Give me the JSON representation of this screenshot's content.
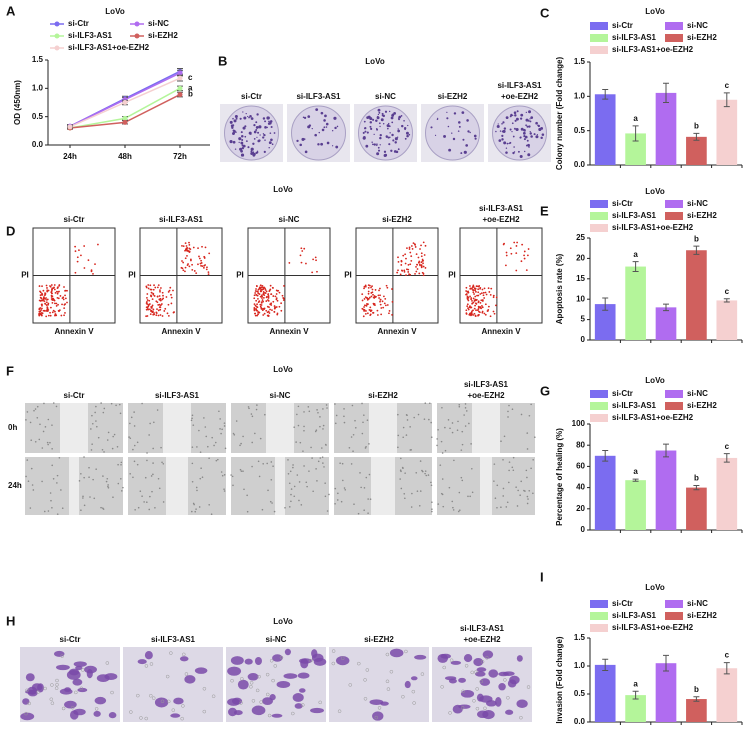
{
  "chart_data": [
    {
      "type": "line",
      "panel": "A",
      "title": "LoVo",
      "y_label": "OD (450nm)",
      "categories": [
        "24h",
        "48h",
        "72h"
      ],
      "ylim": [
        0,
        1.5
      ],
      "yticks": [
        {
          "value": 0,
          "label": "0.0"
        },
        {
          "value": 0.5,
          "label": "0.5"
        },
        {
          "value": 1,
          "label": "1.0"
        },
        {
          "value": 1.5,
          "label": "1.5"
        }
      ],
      "series": [
        {
          "name": "si-Ctr",
          "color": "#7b6cf0",
          "values": [
            0.33,
            0.82,
            1.3
          ],
          "errors": [
            0.03,
            0.04,
            0.05
          ]
        },
        {
          "name": "si-ILF3-AS1",
          "color": "#b4f59a",
          "values": [
            0.3,
            0.47,
            1.0
          ],
          "errors": [
            0.02,
            0.03,
            0.04
          ],
          "annotation": "a"
        },
        {
          "name": "si-NC",
          "color": "#b06cf0",
          "values": [
            0.33,
            0.8,
            1.27
          ],
          "errors": [
            0.03,
            0.04,
            0.05
          ]
        },
        {
          "name": "si-EZH2",
          "color": "#d0605e",
          "values": [
            0.3,
            0.4,
            0.89
          ],
          "errors": [
            0.02,
            0.03,
            0.04
          ],
          "annotation": "b"
        },
        {
          "name": "si-ILF3-AS1+oe-EZH2",
          "color": "#f5d0d0",
          "values": [
            0.32,
            0.75,
            1.18
          ],
          "errors": [
            0.02,
            0.04,
            0.05
          ],
          "annotation": "c"
        }
      ]
    },
    {
      "type": "bar",
      "panel": "C",
      "title": "LoVo",
      "y_label": "Colony number (Fold change)",
      "categories": [
        "si-Ctr",
        "si-ILF3-AS1",
        "si-NC",
        "si-EZH2",
        "si-ILF3-AS1+oe-EZH2"
      ],
      "colors": [
        "#7b6cf0",
        "#b4f59a",
        "#b06cf0",
        "#d0605e",
        "#f5d0d0"
      ],
      "values": [
        1.03,
        0.46,
        1.05,
        0.41,
        0.95
      ],
      "errors": [
        0.07,
        0.11,
        0.14,
        0.05,
        0.1
      ],
      "annotations": [
        null,
        "a",
        null,
        "b",
        "c"
      ],
      "ylim": [
        0,
        1.5
      ],
      "yticks": [
        {
          "value": 0,
          "label": "0.0"
        },
        {
          "value": 0.5,
          "label": "0.5"
        },
        {
          "value": 1,
          "label": "1.0"
        },
        {
          "value": 1.5,
          "label": "1.5"
        }
      ]
    },
    {
      "type": "bar",
      "panel": "E",
      "title": "LoVo",
      "y_label": "Apoptosis rate (%)",
      "categories": [
        "si-Ctr",
        "si-ILF3-AS1",
        "si-NC",
        "si-EZH2",
        "si-ILF3-AS1+oe-EZH2"
      ],
      "colors": [
        "#7b6cf0",
        "#b4f59a",
        "#b06cf0",
        "#d0605e",
        "#f5d0d0"
      ],
      "values": [
        8.8,
        18,
        8,
        22,
        9.7
      ],
      "errors": [
        1.5,
        1.2,
        0.8,
        1.0,
        0.4
      ],
      "annotations": [
        null,
        "a",
        null,
        "b",
        "c"
      ],
      "ylim": [
        0,
        25
      ],
      "yticks": [
        0,
        5,
        10,
        15,
        20,
        25
      ]
    },
    {
      "type": "bar",
      "panel": "G",
      "title": "LoVo",
      "y_label": "Percentage of healing (%)",
      "categories": [
        "si-Ctr",
        "si-ILF3-AS1",
        "si-NC",
        "si-EZH2",
        "si-ILF3-AS1+oe-EZH2"
      ],
      "colors": [
        "#7b6cf0",
        "#b4f59a",
        "#b06cf0",
        "#d0605e",
        "#f5d0d0"
      ],
      "values": [
        70,
        47,
        75,
        40,
        68
      ],
      "errors": [
        5,
        1,
        6,
        2,
        4
      ],
      "annotations": [
        null,
        "a",
        null,
        "b",
        "c"
      ],
      "ylim": [
        0,
        100
      ],
      "yticks": [
        0,
        20,
        40,
        60,
        80,
        100
      ]
    },
    {
      "type": "bar",
      "panel": "I",
      "title": "LoVo",
      "y_label": "Invasion (Fold change)",
      "categories": [
        "si-Ctr",
        "si-ILF3-AS1",
        "si-NC",
        "si-EZH2",
        "si-ILF3-AS1+oe-EZH2"
      ],
      "colors": [
        "#7b6cf0",
        "#b4f59a",
        "#b06cf0",
        "#d0605e",
        "#f5d0d0"
      ],
      "values": [
        1.02,
        0.48,
        1.05,
        0.41,
        0.96
      ],
      "errors": [
        0.1,
        0.07,
        0.14,
        0.04,
        0.1
      ],
      "annotations": [
        null,
        "a",
        null,
        "b",
        "c"
      ],
      "ylim": [
        0,
        1.5
      ],
      "yticks": [
        {
          "value": 0,
          "label": "0.0"
        },
        {
          "value": 0.5,
          "label": "0.5"
        },
        {
          "value": 1,
          "label": "1.0"
        },
        {
          "value": 1.5,
          "label": "1.5"
        }
      ]
    }
  ],
  "image_panels": [
    {
      "panel": "B",
      "title": "LoVo",
      "columns": [
        [
          "si-Ctr"
        ],
        [
          "si-ILF3-AS1"
        ],
        [
          "si-NC"
        ],
        [
          "si-EZH2"
        ],
        [
          "si-ILF3-AS1",
          "+oe-EZH2"
        ]
      ]
    },
    {
      "panel": "D",
      "title": "LoVo",
      "x_label": "Annexin V",
      "y_label": "PI",
      "columns": [
        [
          "si-Ctr"
        ],
        [
          "si-ILF3-AS1"
        ],
        [
          "si-NC"
        ],
        [
          "si-EZH2"
        ],
        [
          "si-ILF3-AS1",
          "+oe-EZH2"
        ]
      ]
    },
    {
      "panel": "F",
      "title": "LoVo",
      "rows": [
        "0h",
        "24h"
      ],
      "columns": [
        [
          "si-Ctr"
        ],
        [
          "si-ILF3-AS1"
        ],
        [
          "si-NC"
        ],
        [
          "si-EZH2"
        ],
        [
          "si-ILF3-AS1",
          "+oe-EZH2"
        ]
      ]
    },
    {
      "panel": "H",
      "title": "LoVo",
      "columns": [
        [
          "si-Ctr"
        ],
        [
          "si-ILF3-AS1"
        ],
        [
          "si-NC"
        ],
        [
          "si-EZH2"
        ],
        [
          "si-ILF3-AS1",
          "+oe-EZH2"
        ]
      ]
    }
  ]
}
